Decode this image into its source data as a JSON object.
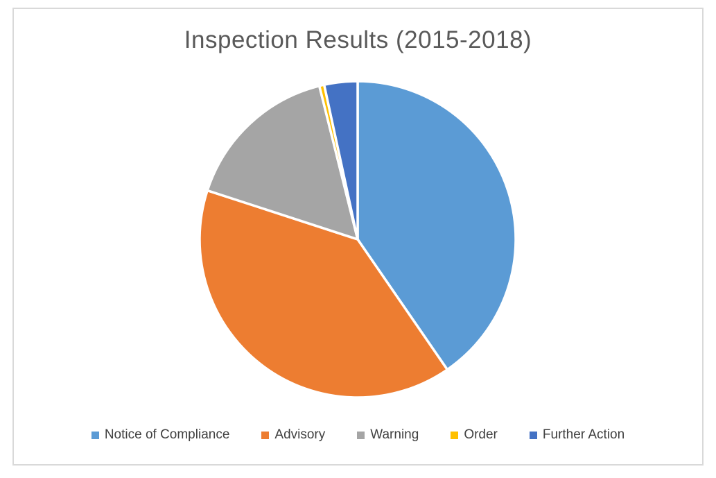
{
  "window": {
    "background_color": "#FFFFFF",
    "frame_border_color": "#D9D9D9"
  },
  "chart_data": {
    "type": "pie",
    "title": "Inspection Results (2015-2018)",
    "categories": [
      "Notice of Compliance",
      "Advisory",
      "Warning",
      "Order",
      "Further Action"
    ],
    "values": [
      40.4,
      39.6,
      16.1,
      0.5,
      3.4
    ],
    "unit": "percent_of_total",
    "colors": [
      "#5B9BD5",
      "#ED7D31",
      "#A5A5A5",
      "#FFC000",
      "#4472C4"
    ],
    "start_angle_deg": 0,
    "direction": "clockwise",
    "slice_border_color": "#FFFFFF",
    "slice_border_width": 3.5,
    "data_labels": "none",
    "legend_position": "bottom",
    "title_color": "#595959",
    "legend_text_color": "#404040"
  }
}
